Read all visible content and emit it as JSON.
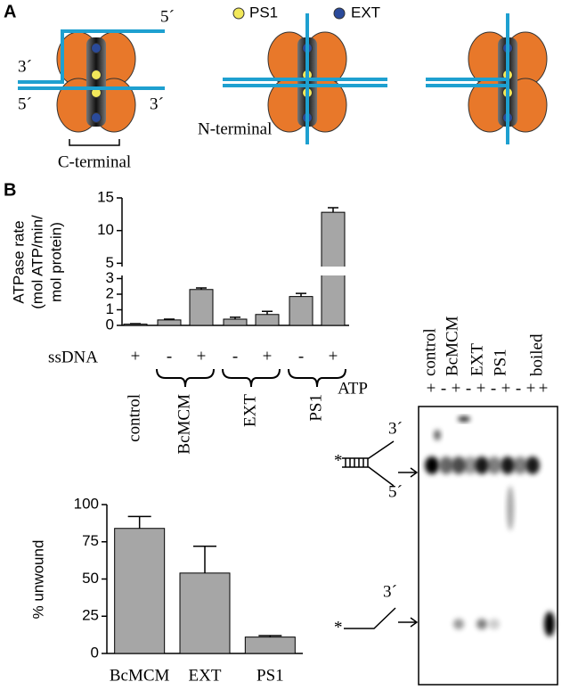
{
  "panel_a": {
    "label": "A",
    "legend": [
      "PS1",
      "EXT"
    ],
    "strand_labels": [
      "5´",
      "3´",
      "5´",
      "3´"
    ],
    "n_terminal": "N-terminal",
    "c_terminal": "C-terminal"
  },
  "panel_b": {
    "label": "B",
    "gel": {
      "lanes": [
        "control",
        "BcMCM",
        "EXT",
        "PS1",
        "boiled"
      ],
      "atp_label": "ATP",
      "atp": [
        "+",
        "-",
        "+",
        "-",
        "+",
        "-",
        "+",
        "-",
        "+",
        "+"
      ],
      "duplex_ends": [
        "3´",
        "5´"
      ],
      "single_end": "3´",
      "label_marker": "*"
    }
  },
  "chart_data": [
    {
      "type": "bar",
      "y_label": [
        "ATPase rate",
        "(mol ATP/min/",
        "mol protein)"
      ],
      "ssdna_label": "ssDNA",
      "groups": [
        {
          "name": "control",
          "values": [
            0.08
          ],
          "errors": [
            0.03
          ],
          "ssdna": [
            "+"
          ]
        },
        {
          "name": "BcMCM",
          "values": [
            0.35,
            2.3
          ],
          "errors": [
            0.05,
            0.1
          ],
          "ssdna": [
            "-",
            "+"
          ]
        },
        {
          "name": "EXT",
          "values": [
            0.4,
            0.7
          ],
          "errors": [
            0.12,
            0.2
          ],
          "ssdna": [
            "-",
            "+"
          ]
        },
        {
          "name": "PS1",
          "values": [
            1.85,
            12.8
          ],
          "errors": [
            0.2,
            0.7
          ],
          "ssdna": [
            "-",
            "+"
          ]
        }
      ],
      "color": "#a6a6a6",
      "ylim": [
        0,
        15
      ],
      "axis_break": [
        3.2,
        4.5
      ],
      "yticks": [
        0,
        1,
        2,
        3,
        5,
        10,
        15
      ]
    },
    {
      "type": "bar",
      "y_label": "% unwound",
      "categories": [
        "BcMCM",
        "EXT",
        "PS1"
      ],
      "values": [
        84,
        54,
        11
      ],
      "errors": [
        8,
        18,
        1
      ],
      "color": "#a6a6a6",
      "ylim": [
        0,
        100
      ],
      "yticks": [
        0,
        25,
        50,
        75,
        100
      ]
    }
  ]
}
